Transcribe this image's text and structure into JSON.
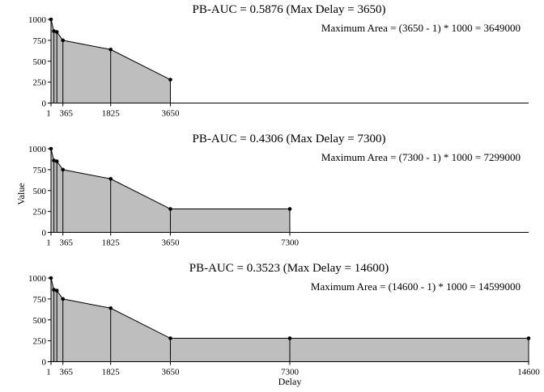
{
  "figure": {
    "ylabel": "Value",
    "xlabel": "Delay"
  },
  "chart_data": [
    {
      "type": "area",
      "title": "PB-AUC = 0.5876 (Max Delay = 3650)",
      "annotation": "Maximum Area = (3650 - 1) * 1000 = 3649000",
      "x": [
        1,
        90,
        180,
        365,
        1825,
        3650
      ],
      "y": [
        1000,
        860,
        850,
        750,
        640,
        280
      ],
      "xlim": [
        1,
        14600
      ],
      "ylim": [
        0,
        1000
      ],
      "yticks": [
        0,
        250,
        500,
        750,
        1000
      ],
      "xticks": [
        "1",
        "365",
        "1825",
        "3650"
      ],
      "fill": "#bebebe"
    },
    {
      "type": "area",
      "title": "PB-AUC = 0.4306 (Max Delay = 7300)",
      "annotation": "Maximum Area = (7300 - 1) * 1000 = 7299000",
      "x": [
        1,
        90,
        180,
        365,
        1825,
        3650,
        7300
      ],
      "y": [
        1000,
        860,
        850,
        750,
        640,
        280,
        280
      ],
      "xlim": [
        1,
        14600
      ],
      "ylim": [
        0,
        1000
      ],
      "yticks": [
        0,
        250,
        500,
        750,
        1000
      ],
      "xticks": [
        "1",
        "365",
        "1825",
        "3650",
        "7300"
      ],
      "fill": "#bebebe"
    },
    {
      "type": "area",
      "title": "PB-AUC = 0.3523 (Max Delay = 14600)",
      "annotation": "Maximum Area = (14600 - 1) * 1000 = 14599000",
      "x": [
        1,
        90,
        180,
        365,
        1825,
        3650,
        7300,
        14600
      ],
      "y": [
        1000,
        860,
        850,
        750,
        640,
        280,
        280,
        280
      ],
      "xlim": [
        1,
        14600
      ],
      "ylim": [
        0,
        1000
      ],
      "yticks": [
        0,
        250,
        500,
        750,
        1000
      ],
      "xticks": [
        "1",
        "365",
        "1825",
        "3650",
        "7300",
        "14600"
      ],
      "fill": "#bebebe"
    }
  ]
}
